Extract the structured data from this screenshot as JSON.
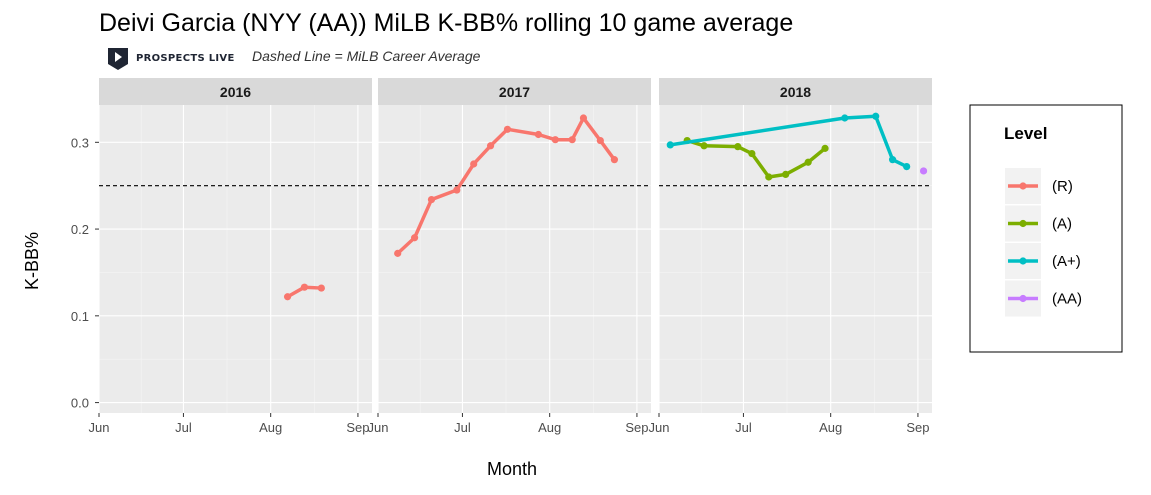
{
  "chart_data": {
    "type": "line",
    "title": "Deivi Garcia (NYY (AA)) MiLB K-BB% rolling 10 game average",
    "subtitle": "Dashed Line = MiLB Career Average",
    "brand": "PROSPECTS LIVE",
    "xlabel": "Month",
    "ylabel": "K-BB%",
    "ylim": [
      -0.012,
      0.343
    ],
    "yticks": [
      0.0,
      0.1,
      0.2,
      0.3
    ],
    "ytick_labels": [
      "0.0",
      "0.1",
      "0.2",
      "0.3"
    ],
    "career_average": 0.25,
    "grid": true,
    "legend": {
      "title": "Level",
      "position": "right",
      "entries": [
        {
          "label": "(R)",
          "color": "#F8766D"
        },
        {
          "label": "(A)",
          "color": "#7CAE00"
        },
        {
          "label": "(A+)",
          "color": "#00BFC4"
        },
        {
          "label": "(AA)",
          "color": "#C77CFF"
        }
      ]
    },
    "panels": [
      {
        "label": "2016",
        "xlim": [
          "2016-06-01",
          "2016-09-06"
        ],
        "xticks": [
          {
            "date": "2016-06-01",
            "label": "Jun"
          },
          {
            "date": "2016-07-01",
            "label": "Jul"
          },
          {
            "date": "2016-08-01",
            "label": "Aug"
          },
          {
            "date": "2016-09-01",
            "label": "Sep"
          }
        ],
        "series": [
          {
            "level": "(R)",
            "color": "#F8766D",
            "points": [
              {
                "x": "2016-08-07",
                "y": 0.122
              },
              {
                "x": "2016-08-13",
                "y": 0.133
              },
              {
                "x": "2016-08-19",
                "y": 0.132
              }
            ]
          }
        ]
      },
      {
        "label": "2017",
        "xlim": [
          "2017-06-01",
          "2017-09-06"
        ],
        "xticks": [
          {
            "date": "2017-06-01",
            "label": "Jun"
          },
          {
            "date": "2017-07-01",
            "label": "Jul"
          },
          {
            "date": "2017-08-01",
            "label": "Aug"
          },
          {
            "date": "2017-09-01",
            "label": "Sep"
          }
        ],
        "series": [
          {
            "level": "(R)",
            "color": "#F8766D",
            "points": [
              {
                "x": "2017-06-08",
                "y": 0.172
              },
              {
                "x": "2017-06-14",
                "y": 0.19
              },
              {
                "x": "2017-06-20",
                "y": 0.234
              },
              {
                "x": "2017-06-29",
                "y": 0.245
              },
              {
                "x": "2017-07-05",
                "y": 0.275
              },
              {
                "x": "2017-07-11",
                "y": 0.296
              },
              {
                "x": "2017-07-17",
                "y": 0.315
              },
              {
                "x": "2017-07-28",
                "y": 0.309
              },
              {
                "x": "2017-08-03",
                "y": 0.303
              },
              {
                "x": "2017-08-09",
                "y": 0.303
              },
              {
                "x": "2017-08-13",
                "y": 0.328
              },
              {
                "x": "2017-08-19",
                "y": 0.302
              },
              {
                "x": "2017-08-24",
                "y": 0.28
              }
            ]
          }
        ]
      },
      {
        "label": "2018",
        "xlim": [
          "2018-06-01",
          "2018-09-06"
        ],
        "xticks": [
          {
            "date": "2018-06-01",
            "label": "Jun"
          },
          {
            "date": "2018-07-01",
            "label": "Jul"
          },
          {
            "date": "2018-08-01",
            "label": "Aug"
          },
          {
            "date": "2018-09-01",
            "label": "Sep"
          }
        ],
        "series": [
          {
            "level": "(A)",
            "color": "#7CAE00",
            "points": [
              {
                "x": "2018-06-11",
                "y": 0.302
              },
              {
                "x": "2018-06-17",
                "y": 0.296
              },
              {
                "x": "2018-06-29",
                "y": 0.295
              },
              {
                "x": "2018-07-04",
                "y": 0.287
              },
              {
                "x": "2018-07-10",
                "y": 0.26
              },
              {
                "x": "2018-07-16",
                "y": 0.263
              },
              {
                "x": "2018-07-24",
                "y": 0.277
              },
              {
                "x": "2018-07-30",
                "y": 0.293
              }
            ]
          },
          {
            "level": "(A+)",
            "color": "#00BFC4",
            "points": [
              {
                "x": "2018-06-05",
                "y": 0.297
              },
              {
                "x": "2018-08-06",
                "y": 0.328
              },
              {
                "x": "2018-08-17",
                "y": 0.33
              },
              {
                "x": "2018-08-23",
                "y": 0.28
              },
              {
                "x": "2018-08-28",
                "y": 0.272
              }
            ]
          },
          {
            "level": "(AA)",
            "color": "#C77CFF",
            "points": [
              {
                "x": "2018-09-03",
                "y": 0.267
              }
            ]
          }
        ]
      }
    ]
  }
}
